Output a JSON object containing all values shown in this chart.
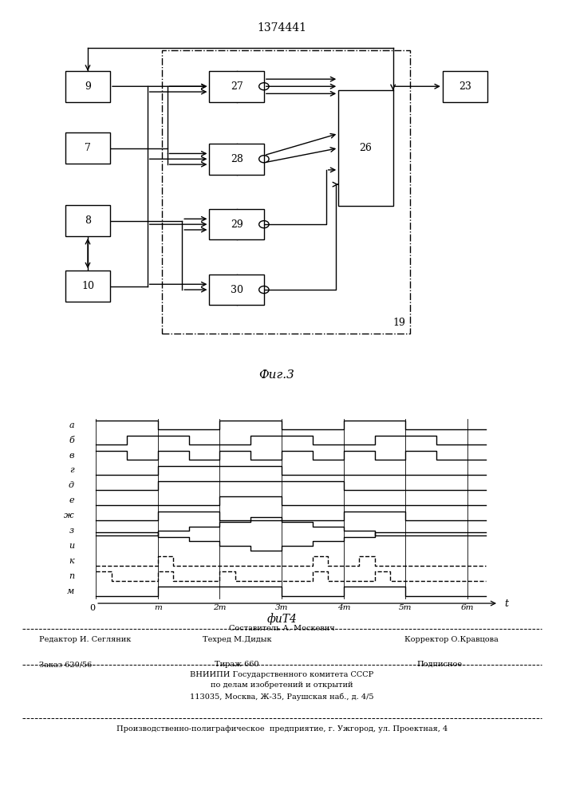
{
  "patent_number": "1374441",
  "fig3_label": "Фиг.3",
  "fig4_label": "фиТ4",
  "bg_color": "#f5f5f0",
  "time_labels": [
    "т",
    "2т",
    "3т",
    "4т",
    "5т",
    "6т"
  ]
}
